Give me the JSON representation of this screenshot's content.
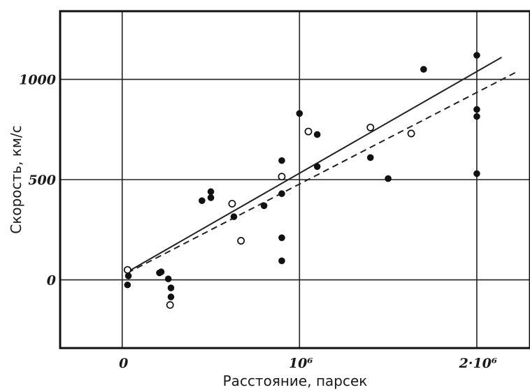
{
  "chart_data": {
    "type": "scatter",
    "xlabel": "Расстояние, парсек",
    "ylabel": "Скорость, км/с",
    "xlim": [
      -350000,
      2300000
    ],
    "ylim": [
      -340,
      1340
    ],
    "grid": true,
    "x_ticks": [
      {
        "value": 0,
        "label": "0"
      },
      {
        "value": 1000000,
        "label": "10⁶"
      },
      {
        "value": 2000000,
        "label": "2·10⁶"
      }
    ],
    "y_ticks": [
      {
        "value": 0,
        "label": "0"
      },
      {
        "value": 500,
        "label": "500"
      },
      {
        "value": 1000,
        "label": "1000"
      }
    ],
    "series": [
      {
        "marker": "filled-circle",
        "color": "#111111",
        "points": [
          {
            "x": 30000,
            "y": -25
          },
          {
            "x": 35000,
            "y": 20
          },
          {
            "x": 210000,
            "y": 35
          },
          {
            "x": 220000,
            "y": 40
          },
          {
            "x": 260000,
            "y": 5
          },
          {
            "x": 275000,
            "y": -40
          },
          {
            "x": 275000,
            "y": -85
          },
          {
            "x": 450000,
            "y": 395
          },
          {
            "x": 500000,
            "y": 440
          },
          {
            "x": 500000,
            "y": 410
          },
          {
            "x": 630000,
            "y": 315
          },
          {
            "x": 800000,
            "y": 370
          },
          {
            "x": 900000,
            "y": 595
          },
          {
            "x": 900000,
            "y": 430
          },
          {
            "x": 900000,
            "y": 210
          },
          {
            "x": 900000,
            "y": 95
          },
          {
            "x": 1000000,
            "y": 830
          },
          {
            "x": 1100000,
            "y": 725
          },
          {
            "x": 1100000,
            "y": 565
          },
          {
            "x": 1400000,
            "y": 610
          },
          {
            "x": 1500000,
            "y": 505
          },
          {
            "x": 1700000,
            "y": 1050
          },
          {
            "x": 2000000,
            "y": 1120
          },
          {
            "x": 2000000,
            "y": 850
          },
          {
            "x": 2000000,
            "y": 815
          },
          {
            "x": 2000000,
            "y": 530
          }
        ]
      },
      {
        "marker": "open-circle",
        "color": "#111111",
        "points": [
          {
            "x": 30000,
            "y": 50
          },
          {
            "x": 270000,
            "y": -125
          },
          {
            "x": 620000,
            "y": 380
          },
          {
            "x": 670000,
            "y": 195
          },
          {
            "x": 900000,
            "y": 515
          },
          {
            "x": 1050000,
            "y": 740
          },
          {
            "x": 1400000,
            "y": 760
          },
          {
            "x": 1630000,
            "y": 730
          }
        ]
      }
    ],
    "lines": [
      {
        "style": "solid",
        "color": "#222222",
        "x": [
          30000,
          2140000
        ],
        "y": [
          40,
          1110
        ]
      },
      {
        "style": "dashed",
        "color": "#222222",
        "x": [
          30000,
          2220000
        ],
        "y": [
          35,
          1035
        ]
      }
    ]
  }
}
